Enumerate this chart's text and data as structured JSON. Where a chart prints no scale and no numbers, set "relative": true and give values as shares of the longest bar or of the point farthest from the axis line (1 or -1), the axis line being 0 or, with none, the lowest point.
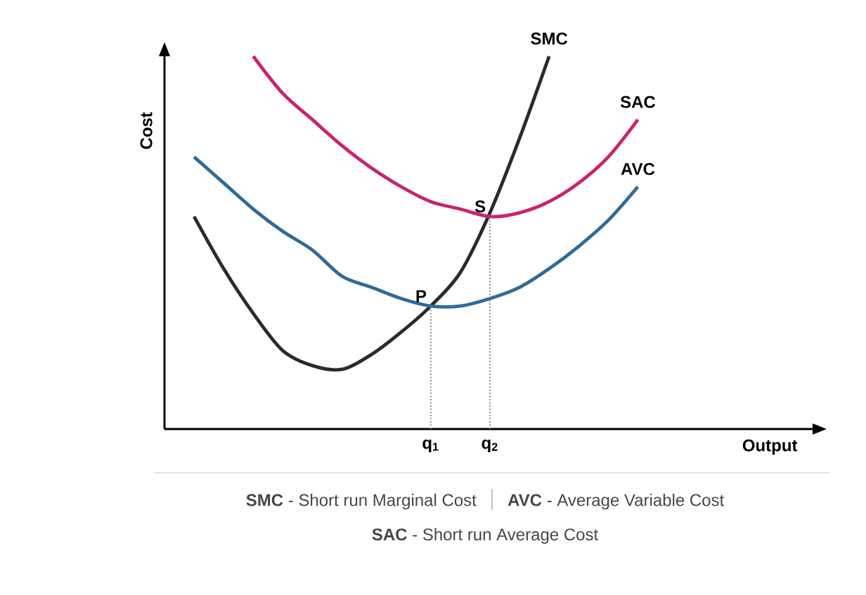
{
  "chart_data": {
    "type": "line",
    "relative": true,
    "xlabel": "Output",
    "ylabel": "Cost",
    "categories": [
      null,
      null,
      null,
      null,
      null,
      null,
      null,
      null,
      null,
      "q$_{1}$",
      null,
      "q$_{2}$",
      null,
      null,
      null,
      null,
      null,
      null,
      null,
      null,
      null,
      null
    ],
    "series": [
      {
        "name": "SMC",
        "color": "#2b2b2b",
        "values": [
          null,
          0.57,
          0.43,
          0.31,
          0.21,
          0.17,
          0.16,
          0.2,
          0.26,
          0.33,
          0.42,
          0.58,
          0.78,
          1.0,
          null,
          null,
          null,
          null,
          null,
          null,
          null,
          null
        ]
      },
      {
        "name": "SAC",
        "color": "#c8246e",
        "values": [
          null,
          null,
          null,
          1.0,
          0.9,
          0.83,
          0.76,
          0.7,
          0.65,
          0.61,
          0.59,
          0.57,
          0.58,
          0.61,
          0.66,
          0.73,
          0.83,
          null,
          null,
          null,
          null,
          null
        ]
      },
      {
        "name": "AVC",
        "color": "#2e6b99",
        "values": [
          null,
          0.73,
          0.66,
          0.59,
          0.53,
          0.48,
          0.41,
          0.38,
          0.35,
          0.33,
          0.33,
          0.35,
          0.38,
          0.43,
          0.49,
          0.56,
          0.65,
          null,
          null,
          null,
          null,
          null
        ]
      }
    ],
    "annotations": [
      {
        "text": "P",
        "x": "q$_{1}$",
        "y": 0.33
      },
      {
        "text": "S",
        "x": "q$_{2}$",
        "y": 0.57
      },
      "**SMC** - Short run Marginal Cost",
      "**AVC** - Average Variable Cost",
      "**SAC** - Short run Average Cost"
    ]
  }
}
